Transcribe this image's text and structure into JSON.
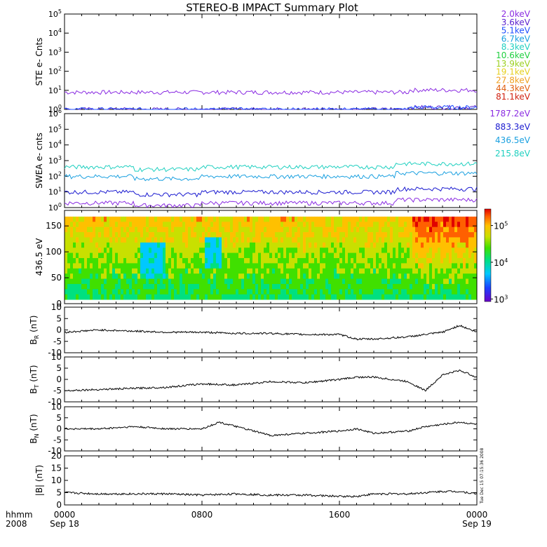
{
  "title": "STEREO-B IMPACT Summary Plot",
  "footer": {
    "time_format": "hhmm",
    "year": "2008",
    "xticks": [
      "0000",
      "0800",
      "1600",
      "0000"
    ],
    "date_start": "Sep 18",
    "date_end": "Sep 19",
    "timestamp": "Tue Dec 15 07:15:36 2008"
  },
  "colors": {
    "ste_legend": [
      "#8a2be2",
      "#5a1fcf",
      "#1f4fff",
      "#1aa0e0",
      "#20d0c0",
      "#20d040",
      "#9bd020",
      "#e6d020",
      "#f0a020",
      "#e06010",
      "#d02010"
    ],
    "swea_legend": [
      "#8a2be2",
      "#1a1ad0",
      "#1aa0e0",
      "#20d0c0"
    ],
    "colorbar": [
      "#6a00c8",
      "#1a40ff",
      "#00c8ff",
      "#00e080",
      "#40e000",
      "#c8e000",
      "#ffc000",
      "#ff6000",
      "#e00000"
    ],
    "trace": "#000000"
  },
  "chart_data": [
    {
      "type": "line",
      "ylabel": "STE e- Cnts",
      "yscale": "log",
      "ytick_exponents": [
        0,
        1,
        2,
        3,
        4,
        5
      ],
      "legend_placement": "right",
      "series": [
        {
          "name": "2.0keV",
          "level": 8
        },
        {
          "name": "3.6keV",
          "level": 1
        },
        {
          "name": "5.1keV",
          "level": 1
        },
        {
          "name": "6.7keV"
        },
        {
          "name": "8.3keV"
        },
        {
          "name": "10.6keV"
        },
        {
          "name": "13.9keV"
        },
        {
          "name": "19.1keV"
        },
        {
          "name": "27.8keV"
        },
        {
          "name": "44.3keV"
        },
        {
          "name": "81.1keV"
        }
      ]
    },
    {
      "type": "line",
      "ylabel": "SWEA e- cnts",
      "yscale": "log",
      "ytick_exponents": [
        0,
        1,
        2,
        3,
        4,
        5,
        6
      ],
      "legend_placement": "right",
      "series": [
        {
          "name": "1787.2eV",
          "level": 2
        },
        {
          "name": "883.3eV",
          "level": 10
        },
        {
          "name": "436.5eV",
          "level": 100
        },
        {
          "name": "215.8eV",
          "level": 400
        }
      ]
    },
    {
      "type": "heatmap",
      "ylabel": "436.5 eV",
      "ylim": [
        0,
        180
      ],
      "yticks": [
        0,
        50,
        100,
        150
      ],
      "colorbar_log_exponents": [
        3,
        4,
        5
      ]
    },
    {
      "type": "line",
      "ylabel_base": "B",
      "ylabel_sub": "R",
      "ylabel_unit": " (nT)",
      "ylim": [
        -10,
        10
      ],
      "yticks": [
        -10,
        -5,
        0,
        5,
        10
      ],
      "x": [
        0,
        2,
        4,
        6,
        8,
        10,
        12,
        14,
        16,
        17,
        18,
        20,
        21,
        22,
        23,
        24
      ],
      "values": [
        -1,
        0,
        -0.5,
        -1,
        -1,
        -1.5,
        -1.5,
        -2,
        -2,
        -4,
        -4,
        -3,
        -2,
        -1,
        2,
        -1
      ]
    },
    {
      "type": "line",
      "ylabel_base": "B",
      "ylabel_sub": "T",
      "ylabel_unit": " (nT)",
      "ylim": [
        -10,
        10
      ],
      "yticks": [
        -10,
        -5,
        0,
        5,
        10
      ],
      "x": [
        0,
        2,
        4,
        6,
        8,
        10,
        12,
        14,
        16,
        17,
        18,
        20,
        21,
        22,
        23,
        24
      ],
      "values": [
        -5,
        -4.5,
        -4,
        -3.5,
        -2,
        -2.5,
        -1,
        -1.5,
        0,
        1,
        1,
        -1,
        -5,
        2,
        4,
        1
      ]
    },
    {
      "type": "line",
      "ylabel_base": "B",
      "ylabel_sub": "N",
      "ylabel_unit": " (nT)",
      "ylim": [
        -10,
        10
      ],
      "yticks": [
        -10,
        -5,
        0,
        5,
        10
      ],
      "x": [
        0,
        2,
        4,
        6,
        8,
        9,
        10,
        12,
        14,
        16,
        17,
        18,
        20,
        21,
        22,
        23,
        24
      ],
      "values": [
        0,
        0,
        1,
        0,
        0,
        3,
        1,
        -3,
        -2,
        -1,
        0,
        -2,
        -1,
        1,
        2,
        3,
        2
      ]
    },
    {
      "type": "line",
      "ylabel": "|B| (nT)",
      "ylim": [
        0,
        20
      ],
      "yticks": [
        0,
        5,
        10,
        15,
        20
      ],
      "x": [
        0,
        2,
        4,
        6,
        8,
        10,
        12,
        14,
        16,
        17,
        18,
        20,
        21,
        22,
        23,
        24
      ],
      "values": [
        5,
        4.5,
        4.5,
        4.5,
        4,
        4.5,
        4,
        4,
        3.5,
        3.5,
        4.5,
        4.5,
        5,
        5.5,
        5.5,
        4.5
      ]
    }
  ]
}
